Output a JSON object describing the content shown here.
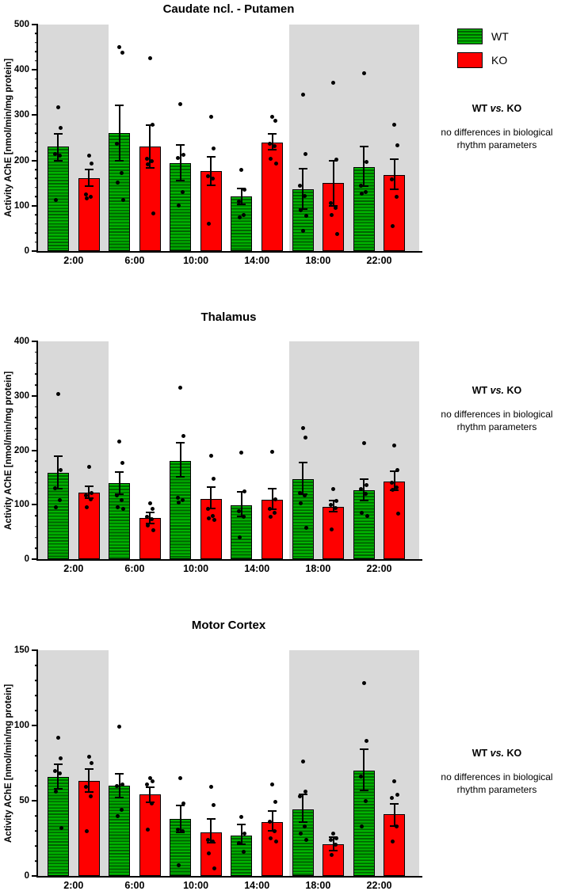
{
  "colors": {
    "wt_green": "#00b200",
    "wt_green_stripe": "#006200",
    "ko_red": "#fe0000",
    "night_shade_gray": "#d9d9d9",
    "axis_black": "#000000"
  },
  "legend": {
    "items": [
      {
        "label": "WT",
        "swatch": "green-striped"
      },
      {
        "label": "KO",
        "swatch": "red-solid"
      }
    ]
  },
  "chart_data": [
    {
      "type": "bar",
      "title": "Caudate ncl. - Putamen",
      "ylabel": "Activity AChE [nmol/min/mg protein]",
      "xlabel": "",
      "ylim": [
        0,
        500
      ],
      "ytick_major": 100,
      "ytick_minor": 20,
      "grid": false,
      "categories": [
        "2:00",
        "6:00",
        "10:00",
        "14:00",
        "18:00",
        "22:00"
      ],
      "shaded_bands_fraction": [
        [
          0,
          0.1835
        ],
        [
          0.6536,
          0.9918
        ]
      ],
      "series": [
        {
          "name": "WT",
          "means": [
            230,
            260,
            194,
            120,
            137,
            185
          ],
          "err_low": [
            200,
            200,
            155,
            103,
            93,
            143
          ],
          "err_high": [
            258,
            322,
            235,
            138,
            181,
            230
          ],
          "points": [
            [
              318,
              272,
              215,
              211,
              113
            ],
            [
              450,
              438,
              237,
              172,
              151,
              113
            ],
            [
              325,
              213,
              205,
              131,
              101
            ],
            [
              180,
              135,
              110,
              80,
              75
            ],
            [
              346,
              215,
              145,
              122,
              90,
              78,
              45
            ],
            [
              393,
              196,
              145,
              131,
              126
            ]
          ]
        },
        {
          "name": "KO",
          "means": [
            161,
            231,
            176,
            240,
            150,
            168
          ],
          "err_low": [
            143,
            184,
            145,
            223,
            100,
            137
          ],
          "err_high": [
            180,
            278,
            208,
            258,
            200,
            202
          ],
          "points": [
            [
              210,
              193,
              125,
              120,
              116
            ],
            [
              426,
              278,
              203,
              199,
              192,
              83
            ],
            [
              297,
              226,
              165,
              160,
              60
            ],
            [
              297,
              287,
              237,
              232,
              204,
              193
            ],
            [
              371,
              202,
              105,
              95,
              80,
              38
            ],
            [
              278,
              233,
              158,
              120,
              55
            ]
          ]
        }
      ],
      "note": {
        "group1": "WT",
        "vs": "vs.",
        "group2": "KO",
        "body": "no differences in biological rhythm parameters"
      }
    },
    {
      "type": "bar",
      "title": "Thalamus",
      "ylabel": "Activity AChE [nmol/min/mg protein]",
      "xlabel": "",
      "ylim": [
        0,
        400
      ],
      "ytick_major": 100,
      "ytick_minor": 20,
      "grid": false,
      "categories": [
        "2:00",
        "6:00",
        "10:00",
        "14:00",
        "18:00",
        "22:00"
      ],
      "shaded_bands_fraction": [
        [
          0,
          0.1835
        ],
        [
          0.6536,
          0.9918
        ]
      ],
      "series": [
        {
          "name": "WT",
          "means": [
            158,
            139,
            181,
            99,
            147,
            126
          ],
          "err_low": [
            129,
            119,
            151,
            78,
            119,
            107
          ],
          "err_high": [
            189,
            160,
            214,
            124,
            177,
            147
          ],
          "points": [
            [
              304,
              163,
              130,
              109,
              96
            ],
            [
              216,
              177,
              117,
              108,
              96,
              93
            ],
            [
              315,
              226,
              113,
              108,
              104
            ],
            [
              195,
              125,
              88,
              78,
              40
            ],
            [
              241,
              224,
              122,
              117,
              103,
              58
            ],
            [
              213,
              136,
              129,
              120,
              85,
              80
            ]
          ]
        },
        {
          "name": "KO",
          "means": [
            122,
            76,
            111,
            109,
            96,
            143
          ],
          "err_low": [
            112,
            66,
            93,
            92,
            87,
            127
          ],
          "err_high": [
            134,
            86,
            132,
            129,
            108,
            161
          ],
          "points": [
            [
              169,
              121,
              117,
              110,
              96
            ],
            [
              102,
              92,
              78,
              74,
              62,
              53
            ],
            [
              190,
              148,
              93,
              80,
              75,
              72
            ],
            [
              197,
              110,
              92,
              85,
              78
            ],
            [
              129,
              107,
              99,
              94,
              54
            ],
            [
              209,
              163,
              140,
              132,
              127,
              83
            ]
          ]
        }
      ],
      "note": {
        "group1": "WT",
        "vs": "vs.",
        "group2": "KO",
        "body": "no differences in biological rhythm parameters"
      }
    },
    {
      "type": "bar",
      "title": "Motor Cortex",
      "ylabel": "Activity AChE [nmol/min/mg protein]",
      "xlabel": "",
      "ylim": [
        0,
        150
      ],
      "ytick_major": 50,
      "ytick_minor": 10,
      "grid": false,
      "categories": [
        "2:00",
        "6:00",
        "10:00",
        "14:00",
        "18:00",
        "22:00"
      ],
      "shaded_bands_fraction": [
        [
          0,
          0.1835
        ],
        [
          0.6536,
          0.9918
        ]
      ],
      "series": [
        {
          "name": "WT",
          "means": [
            66,
            60,
            38,
            27,
            44,
            70
          ],
          "err_low": [
            58,
            52,
            29,
            21,
            36,
            57
          ],
          "err_high": [
            74,
            68,
            47,
            34,
            54,
            84
          ],
          "points": [
            [
              92,
              78,
              70,
              68,
              56,
              32
            ],
            [
              99,
              61,
              60,
              44,
              40
            ],
            [
              65,
              48,
              31,
              30,
              7
            ],
            [
              39,
              28,
              22,
              16
            ],
            [
              76,
              56,
              53,
              33,
              28,
              24
            ],
            [
              128,
              90,
              66,
              50,
              33
            ]
          ]
        },
        {
          "name": "KO",
          "means": [
            63,
            54,
            29,
            36,
            21,
            41
          ],
          "err_low": [
            56,
            49,
            22,
            30,
            17,
            33
          ],
          "err_high": [
            71,
            59,
            38,
            43,
            26,
            48
          ],
          "points": [
            [
              79,
              75,
              59,
              53,
              30
            ],
            [
              65,
              63,
              61,
              48,
              31
            ],
            [
              59,
              47,
              24,
              23,
              15,
              5
            ],
            [
              61,
              49,
              36,
              30,
              25,
              23
            ],
            [
              28,
              25,
              24,
              21,
              14
            ],
            [
              63,
              54,
              52,
              33,
              23
            ]
          ]
        }
      ],
      "note": {
        "group1": "WT",
        "vs": "vs.",
        "group2": "KO",
        "body": "no differences in biological rhythm parameters"
      }
    }
  ]
}
